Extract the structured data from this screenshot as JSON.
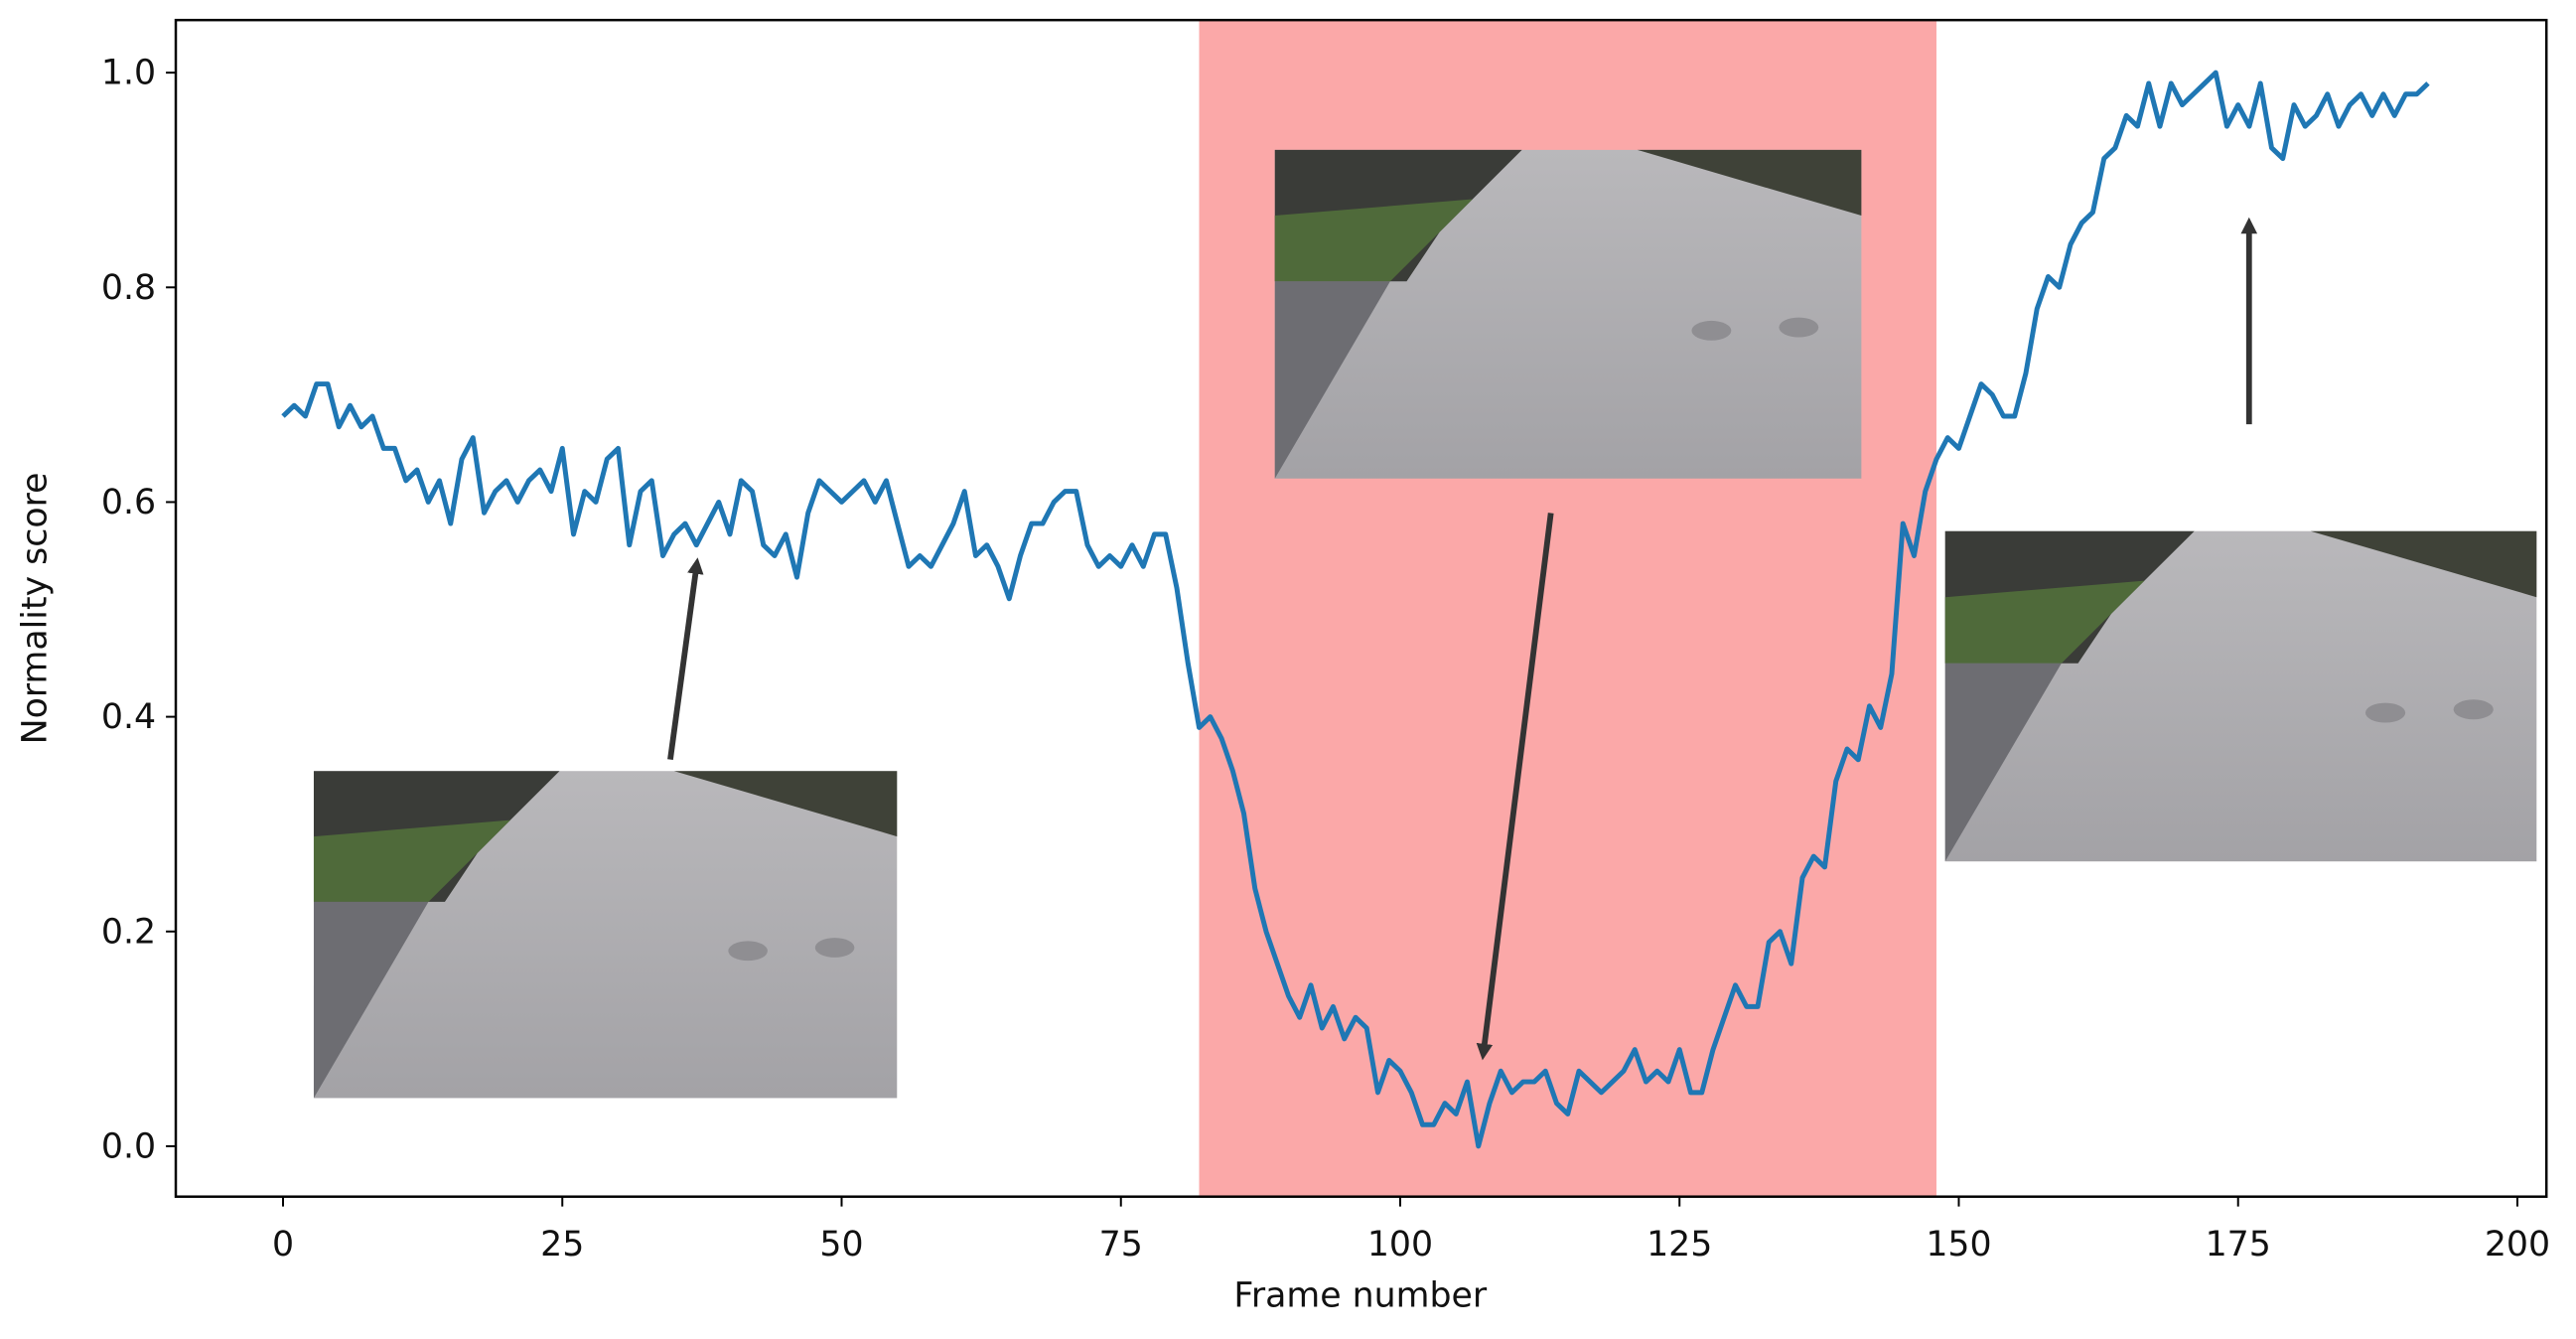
{
  "chart_data": {
    "type": "line",
    "x_label": "Frame number",
    "y_label": "Normality score",
    "x": [
      0,
      1,
      2,
      3,
      4,
      5,
      6,
      7,
      8,
      9,
      10,
      11,
      12,
      13,
      14,
      15,
      16,
      17,
      18,
      19,
      20,
      21,
      22,
      23,
      24,
      25,
      26,
      27,
      28,
      29,
      30,
      31,
      32,
      33,
      34,
      35,
      36,
      37,
      38,
      39,
      40,
      41,
      42,
      43,
      44,
      45,
      46,
      47,
      48,
      49,
      50,
      51,
      52,
      53,
      54,
      55,
      56,
      57,
      58,
      59,
      60,
      61,
      62,
      63,
      64,
      65,
      66,
      67,
      68,
      69,
      70,
      71,
      72,
      73,
      74,
      75,
      76,
      77,
      78,
      79,
      80,
      81,
      82,
      83,
      84,
      85,
      86,
      87,
      88,
      89,
      90,
      91,
      92,
      93,
      94,
      95,
      96,
      97,
      98,
      99,
      100,
      101,
      102,
      103,
      104,
      105,
      106,
      107,
      108,
      109,
      110,
      111,
      112,
      113,
      114,
      115,
      116,
      117,
      118,
      119,
      120,
      121,
      122,
      123,
      124,
      125,
      126,
      127,
      128,
      129,
      130,
      131,
      132,
      133,
      134,
      135,
      136,
      137,
      138,
      139,
      140,
      141,
      142,
      143,
      144,
      145,
      146,
      147,
      148,
      149,
      150,
      151,
      152,
      153,
      154,
      155,
      156,
      157,
      158,
      159,
      160,
      161,
      162,
      163,
      164,
      165,
      166,
      167,
      168,
      169,
      170,
      171,
      172,
      173,
      174,
      175,
      176,
      177,
      178,
      179,
      180,
      181,
      182,
      183,
      184,
      185,
      186,
      187,
      188,
      189,
      190,
      191,
      192
    ],
    "series": [
      {
        "color": "#1f77b4",
        "values": [
          0.68,
          0.69,
          0.68,
          0.71,
          0.71,
          0.67,
          0.69,
          0.67,
          0.68,
          0.65,
          0.65,
          0.62,
          0.63,
          0.6,
          0.62,
          0.58,
          0.64,
          0.66,
          0.59,
          0.61,
          0.62,
          0.6,
          0.62,
          0.63,
          0.61,
          0.65,
          0.57,
          0.61,
          0.6,
          0.64,
          0.65,
          0.56,
          0.61,
          0.62,
          0.55,
          0.57,
          0.58,
          0.56,
          0.58,
          0.6,
          0.57,
          0.62,
          0.61,
          0.56,
          0.55,
          0.57,
          0.53,
          0.59,
          0.62,
          0.61,
          0.6,
          0.61,
          0.62,
          0.6,
          0.62,
          0.58,
          0.54,
          0.55,
          0.54,
          0.56,
          0.58,
          0.61,
          0.55,
          0.56,
          0.54,
          0.51,
          0.55,
          0.58,
          0.58,
          0.6,
          0.61,
          0.61,
          0.56,
          0.54,
          0.55,
          0.54,
          0.56,
          0.54,
          0.57,
          0.57,
          0.52,
          0.45,
          0.39,
          0.4,
          0.38,
          0.35,
          0.31,
          0.24,
          0.2,
          0.17,
          0.14,
          0.12,
          0.15,
          0.11,
          0.13,
          0.1,
          0.12,
          0.11,
          0.05,
          0.08,
          0.07,
          0.05,
          0.02,
          0.02,
          0.04,
          0.03,
          0.06,
          0.0,
          0.04,
          0.07,
          0.05,
          0.06,
          0.06,
          0.07,
          0.04,
          0.03,
          0.07,
          0.06,
          0.05,
          0.06,
          0.07,
          0.09,
          0.06,
          0.07,
          0.06,
          0.09,
          0.05,
          0.05,
          0.09,
          0.12,
          0.15,
          0.13,
          0.13,
          0.19,
          0.2,
          0.17,
          0.25,
          0.27,
          0.26,
          0.34,
          0.37,
          0.36,
          0.41,
          0.39,
          0.44,
          0.58,
          0.55,
          0.61,
          0.64,
          0.66,
          0.65,
          0.68,
          0.71,
          0.7,
          0.68,
          0.68,
          0.72,
          0.78,
          0.81,
          0.8,
          0.84,
          0.86,
          0.87,
          0.92,
          0.93,
          0.96,
          0.95,
          0.99,
          0.95,
          0.99,
          0.97,
          0.98,
          0.99,
          1.0,
          0.95,
          0.97,
          0.95,
          0.99,
          0.93,
          0.92,
          0.97,
          0.95,
          0.96,
          0.98,
          0.95,
          0.97,
          0.98,
          0.96,
          0.98,
          0.96,
          0.98,
          0.98,
          0.99
        ]
      }
    ],
    "shaded_region": {
      "x": [
        82,
        148
      ],
      "color": "#fba8a8"
    },
    "xlim": [
      -9.6,
      202.6
    ],
    "ylim": [
      -0.047,
      1.049
    ],
    "xticks": [
      0,
      25,
      50,
      75,
      100,
      125,
      150,
      175,
      200
    ],
    "yticks": [
      {
        "value": 0,
        "label": "0.0"
      },
      {
        "value": 0.2,
        "label": "0.2"
      },
      {
        "value": 0.4,
        "label": "0.4"
      },
      {
        "value": 0.6,
        "label": "0.6"
      },
      {
        "value": 0.8,
        "label": "0.8"
      },
      {
        "value": 1,
        "label": "1.0"
      }
    ]
  }
}
